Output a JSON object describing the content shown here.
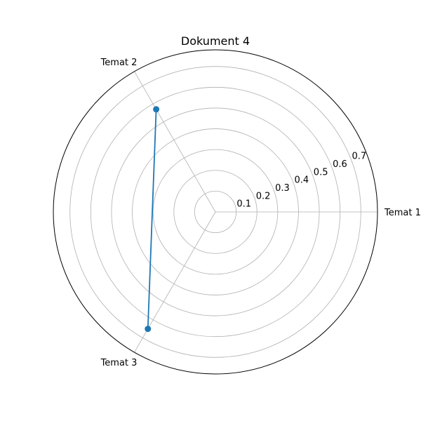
{
  "chart_data": {
    "type": "radar",
    "title": "Dokument 4",
    "categories": [
      "Temat 1",
      "Temat 2",
      "Temat 3"
    ],
    "series": [
      {
        "values": [
          0.0,
          0.57,
          0.65
        ]
      }
    ],
    "radial_ticks": [
      "0.1",
      "0.2",
      "0.3",
      "0.4",
      "0.5",
      "0.6",
      "0.7"
    ],
    "rlim": [
      0,
      0.78
    ],
    "closed_polygon": false,
    "grid": true,
    "colors": {
      "series": "#1f77b4",
      "grid": "#b0b0b0",
      "frame": "#000000"
    }
  }
}
